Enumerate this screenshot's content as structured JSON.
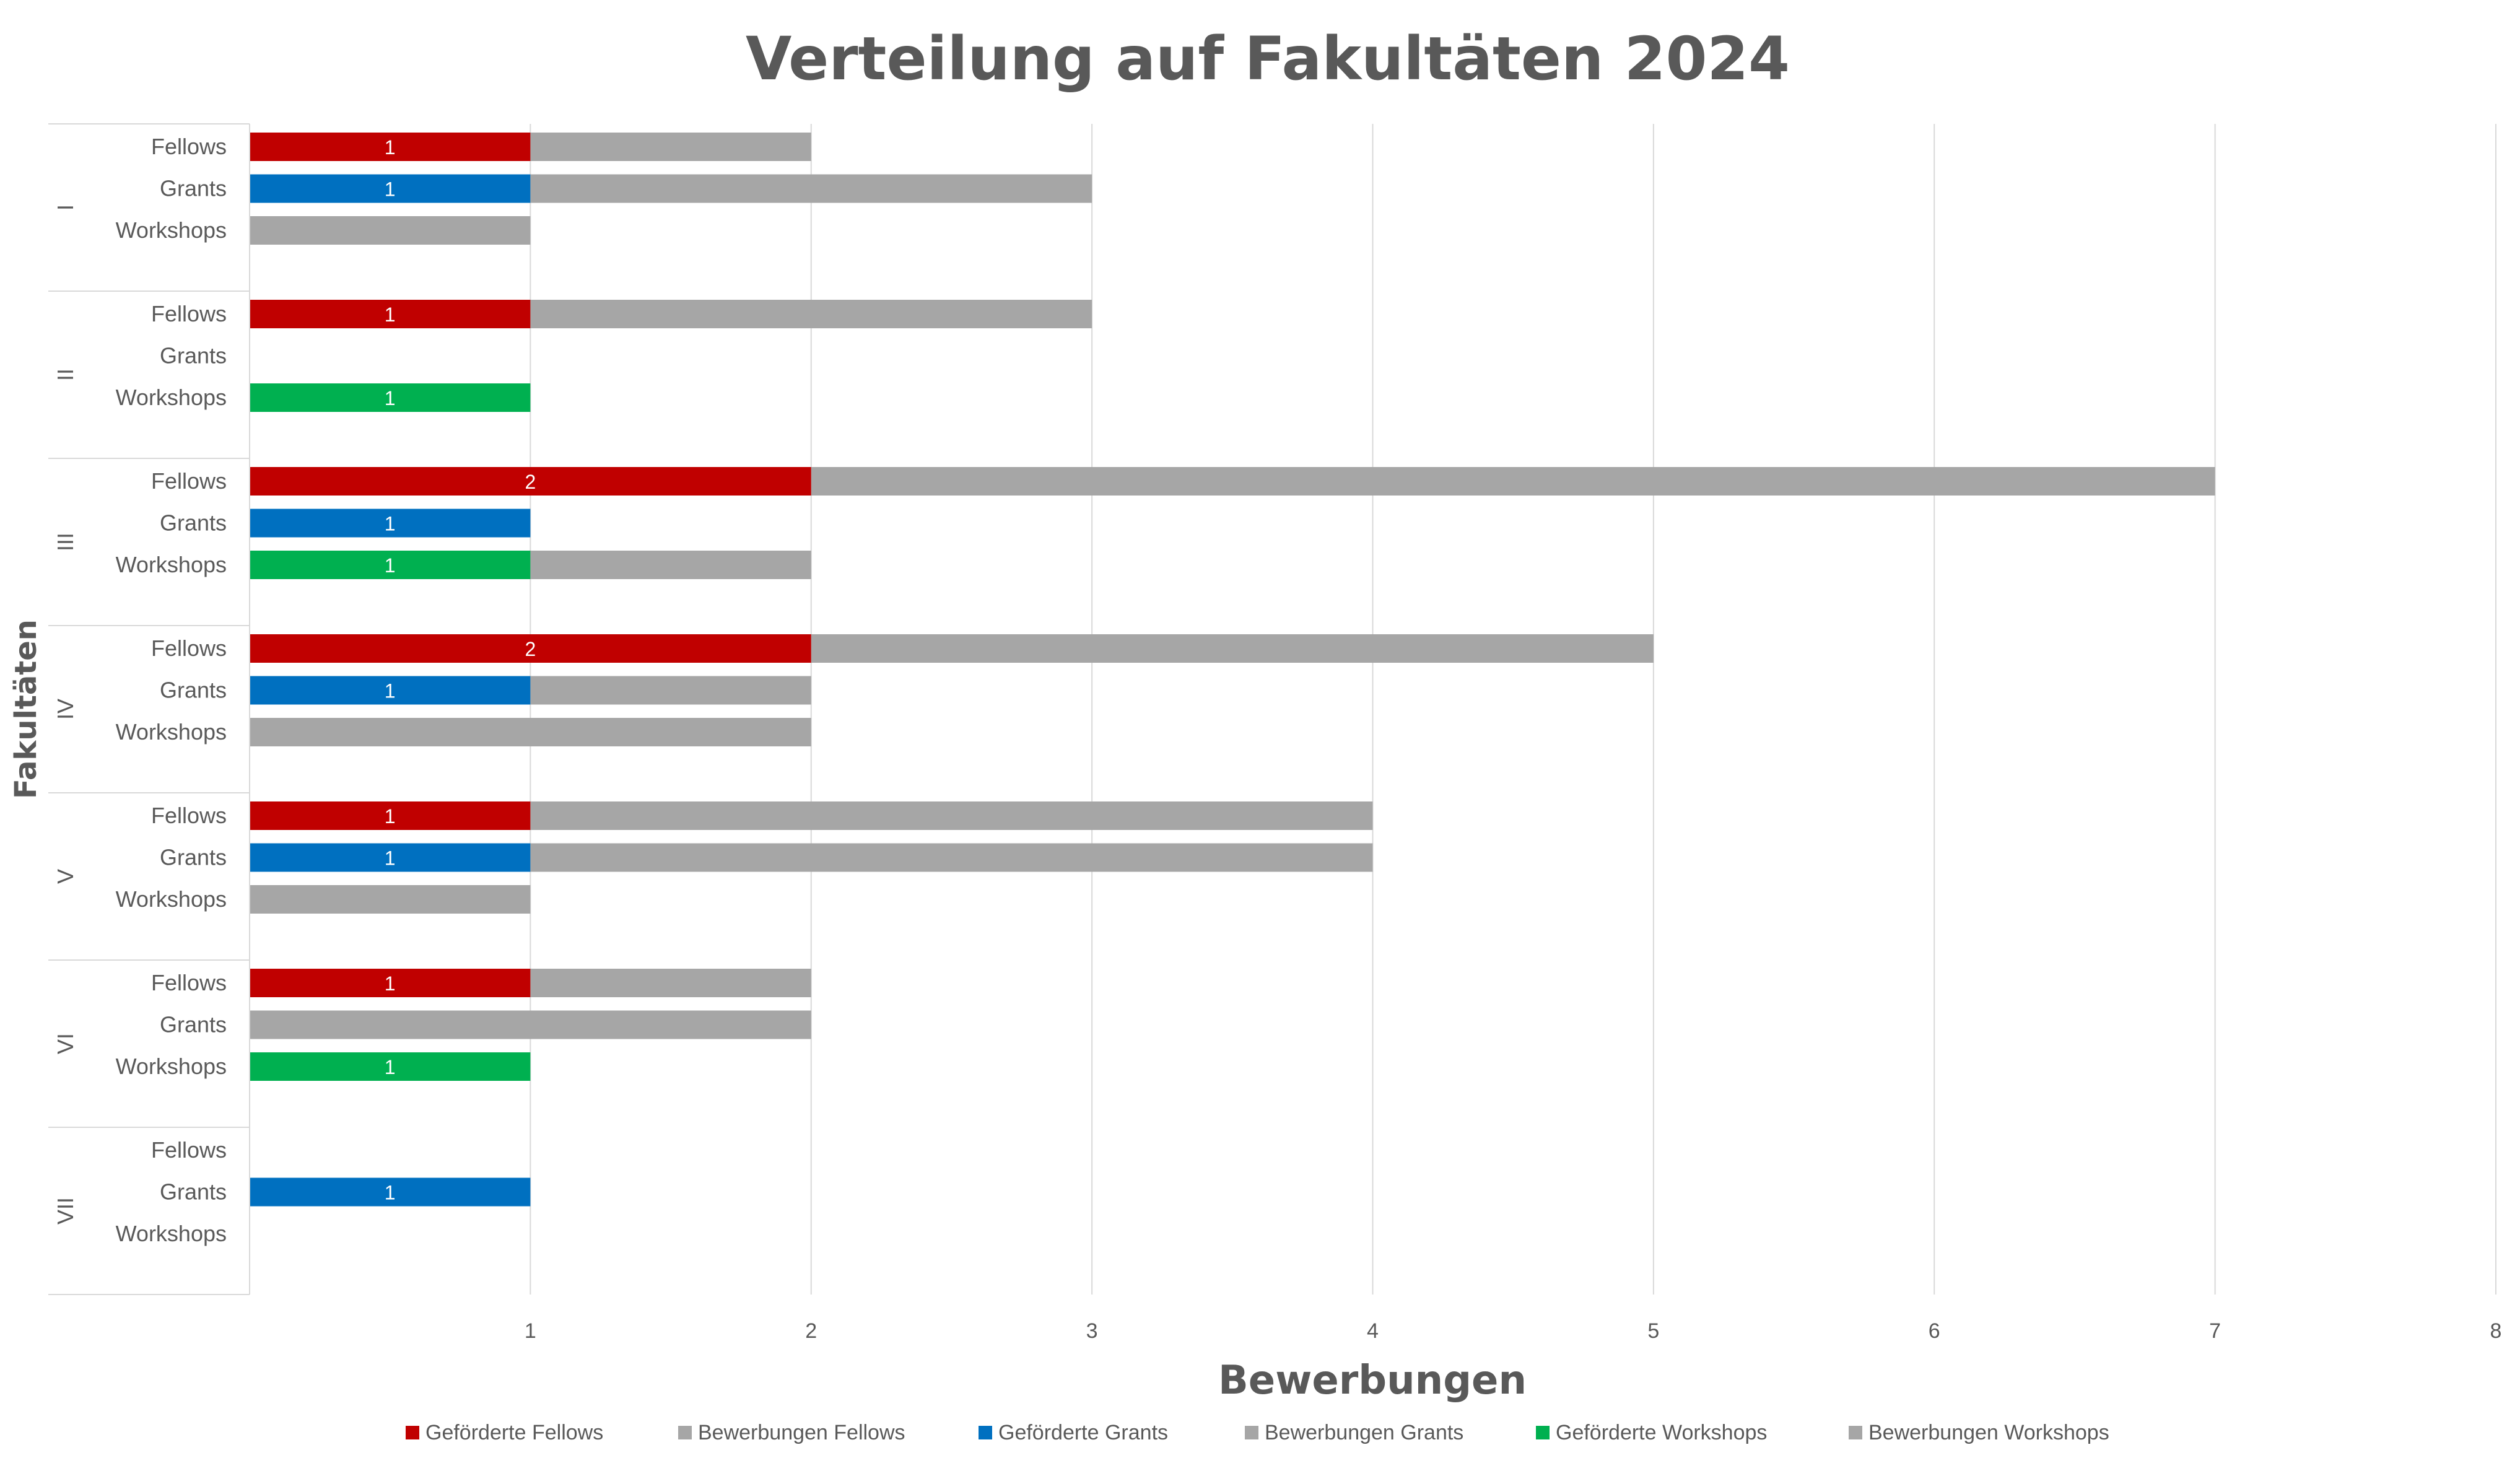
{
  "chart_data": {
    "type": "bar",
    "orientation": "horizontal",
    "title": "Verteilung auf Fakultäten 2024",
    "xlabel": "Bewerbungen",
    "ylabel": "Fakultäten",
    "xlim": [
      0,
      8
    ],
    "xticks": [
      "1",
      "2",
      "3",
      "4",
      "5",
      "6",
      "7",
      "8"
    ],
    "grid": true,
    "legend_position": "bottom",
    "faculties": [
      "I",
      "II",
      "III",
      "IV",
      "V",
      "VI",
      "VII"
    ],
    "subcategories": [
      "Fellows",
      "Grants",
      "Workshops"
    ],
    "series": [
      {
        "name": "Geförderte Fellows",
        "color": "#C00000",
        "type": "funded",
        "group": "Fellows",
        "values": [
          1,
          1,
          2,
          2,
          1,
          1,
          0
        ]
      },
      {
        "name": "Bewerbungen Fellows",
        "color": "#A6A6A6",
        "type": "applications",
        "group": "Fellows",
        "values": [
          2,
          3,
          7,
          5,
          4,
          2,
          0
        ]
      },
      {
        "name": "Geförderte Grants",
        "color": "#0070C0",
        "type": "funded",
        "group": "Grants",
        "values": [
          1,
          0,
          1,
          1,
          1,
          0,
          1
        ]
      },
      {
        "name": "Bewerbungen Grants",
        "color": "#A6A6A6",
        "type": "applications",
        "group": "Grants",
        "values": [
          3,
          0,
          1,
          2,
          4,
          2,
          1
        ]
      },
      {
        "name": "Geförderte Workshops",
        "color": "#00B050",
        "type": "funded",
        "group": "Workshops",
        "values": [
          0,
          1,
          1,
          0,
          0,
          1,
          0
        ]
      },
      {
        "name": "Bewerbungen Workshops",
        "color": "#A6A6A6",
        "type": "applications",
        "group": "Workshops",
        "values": [
          1,
          1,
          2,
          2,
          1,
          0,
          0
        ]
      }
    ]
  }
}
